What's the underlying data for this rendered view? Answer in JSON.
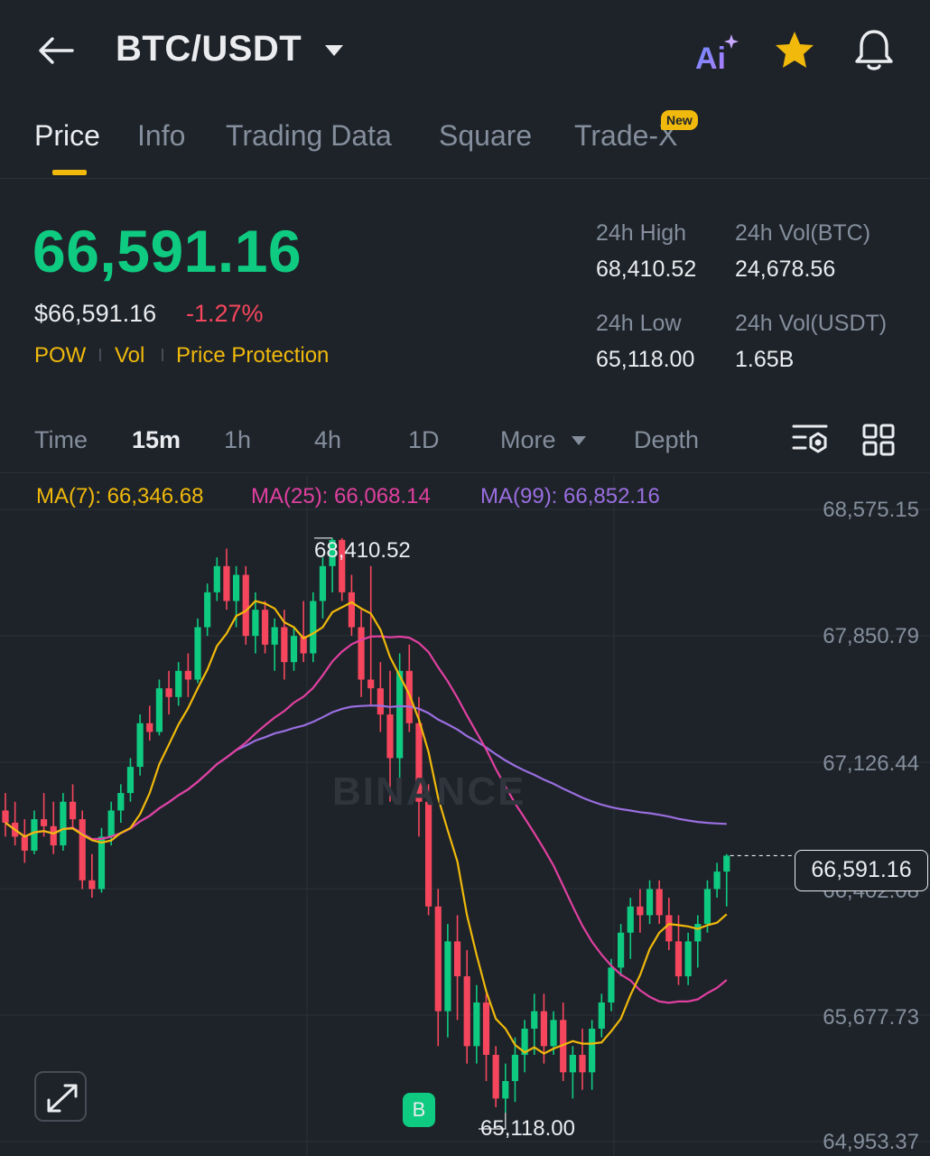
{
  "header": {
    "pair": "BTC/USDT",
    "icons": {
      "back": "back-arrow-icon",
      "caret": "chevron-down-icon",
      "ai": "ai-icon",
      "favorite": "star-icon",
      "alerts": "bell-icon"
    },
    "ai_text": "Ai",
    "favorite_color": "#f0b90b"
  },
  "tabs": [
    {
      "label": "Price",
      "active": true
    },
    {
      "label": "Info"
    },
    {
      "label": "Trading Data"
    },
    {
      "label": "Square"
    },
    {
      "label": "Trade-X",
      "badge": "New"
    }
  ],
  "price": {
    "last": "66,591.16",
    "usd": "$66,591.16",
    "change": "-1.27%",
    "tags": [
      "POW",
      "Vol",
      "Price Protection"
    ]
  },
  "stats": {
    "high_label": "24h High",
    "high_value": "68,410.52",
    "low_label": "24h Low",
    "low_value": "65,118.00",
    "vol_btc_label": "24h Vol(BTC)",
    "vol_btc_value": "24,678.56",
    "vol_usdt_label": "24h Vol(USDT)",
    "vol_usdt_value": "1.65B"
  },
  "intervals": [
    {
      "label": "Time"
    },
    {
      "label": "15m",
      "active": true
    },
    {
      "label": "1h"
    },
    {
      "label": "4h"
    },
    {
      "label": "1D"
    },
    {
      "label": "More"
    },
    {
      "label": "Depth"
    }
  ],
  "indicators": {
    "ma7": "MA(7): 66,346.68",
    "ma25": "MA(25): 66,068.14",
    "ma99": "MA(99): 66,852.16"
  },
  "colors": {
    "up": "#0ecb81",
    "down": "#f6465d",
    "accent": "#f0b90b",
    "ma7": "#f0b90b",
    "ma25": "#e040a0",
    "ma99": "#9a6ee0",
    "background": "#1e2329"
  },
  "chart": {
    "price_axis": [
      "68,575.15",
      "67,850.79",
      "67,126.44",
      "66,402.08",
      "65,677.73",
      "64,953.37"
    ],
    "current_price": "66,591.16",
    "peak_label": "68,410.52",
    "trough_label": "65,118.00",
    "buy_marker": "B",
    "watermark": "BINANCE"
  },
  "chart_data": {
    "type": "candlestick",
    "ylim": [
      64953.37,
      68575.15
    ],
    "y_ticks": [
      68575.15,
      67850.79,
      67126.44,
      66402.08,
      65677.73,
      64953.37
    ],
    "grid": true,
    "candles_ohlc": [
      [
        66850,
        66950,
        66700,
        66780
      ],
      [
        66780,
        66900,
        66650,
        66700
      ],
      [
        66700,
        66800,
        66550,
        66620
      ],
      [
        66620,
        66850,
        66600,
        66800
      ],
      [
        66800,
        66950,
        66700,
        66760
      ],
      [
        66760,
        66900,
        66600,
        66650
      ],
      [
        66650,
        66950,
        66620,
        66900
      ],
      [
        66900,
        67000,
        66750,
        66800
      ],
      [
        66800,
        66850,
        66400,
        66450
      ],
      [
        66450,
        66600,
        66350,
        66400
      ],
      [
        66400,
        66750,
        66380,
        66700
      ],
      [
        66700,
        66900,
        66650,
        66850
      ],
      [
        66850,
        67000,
        66780,
        66950
      ],
      [
        66950,
        67150,
        66900,
        67100
      ],
      [
        67100,
        67400,
        67050,
        67350
      ],
      [
        67350,
        67450,
        67250,
        67300
      ],
      [
        67300,
        67600,
        67280,
        67550
      ],
      [
        67550,
        67650,
        67400,
        67500
      ],
      [
        67500,
        67700,
        67450,
        67650
      ],
      [
        67650,
        67750,
        67500,
        67600
      ],
      [
        67600,
        67950,
        67580,
        67900
      ],
      [
        67900,
        68150,
        67850,
        68100
      ],
      [
        68100,
        68300,
        68050,
        68250
      ],
      [
        68250,
        68350,
        68000,
        68050
      ],
      [
        68050,
        68250,
        67900,
        68200
      ],
      [
        68200,
        68250,
        67800,
        67850
      ],
      [
        67850,
        68100,
        67750,
        68000
      ],
      [
        68000,
        68050,
        67750,
        67800
      ],
      [
        67800,
        67950,
        67650,
        67900
      ],
      [
        67900,
        68000,
        67600,
        67700
      ],
      [
        67700,
        67900,
        67650,
        67850
      ],
      [
        67850,
        68050,
        67700,
        67750
      ],
      [
        67750,
        68100,
        67700,
        68050
      ],
      [
        68050,
        68300,
        67950,
        68250
      ],
      [
        68250,
        68410.52,
        68100,
        68400
      ],
      [
        68400,
        68410,
        68050,
        68100
      ],
      [
        68100,
        68200,
        67850,
        67900
      ],
      [
        67900,
        68000,
        67500,
        67600
      ],
      [
        67600,
        68250,
        67450,
        67550
      ],
      [
        67550,
        67700,
        67300,
        67400
      ],
      [
        67400,
        67650,
        66900,
        67150
      ],
      [
        67150,
        67750,
        66950,
        67650
      ],
      [
        67650,
        67800,
        67300,
        67350
      ],
      [
        67350,
        67500,
        66700,
        66900
      ],
      [
        66900,
        67000,
        66250,
        66300
      ],
      [
        66300,
        66400,
        65500,
        65700
      ],
      [
        65700,
        66200,
        65550,
        66100
      ],
      [
        66100,
        66250,
        65650,
        65900
      ],
      [
        65900,
        66050,
        65400,
        65500
      ],
      [
        65500,
        65850,
        65400,
        65750
      ],
      [
        65750,
        65800,
        65300,
        65450
      ],
      [
        65450,
        65500,
        65150,
        65200
      ],
      [
        65200,
        65400,
        65118,
        65300
      ],
      [
        65300,
        65550,
        65180,
        65450
      ],
      [
        65450,
        65650,
        65350,
        65600
      ],
      [
        65600,
        65800,
        65450,
        65700
      ],
      [
        65700,
        65800,
        65400,
        65500
      ],
      [
        65500,
        65700,
        65450,
        65650
      ],
      [
        65650,
        65750,
        65300,
        65350
      ],
      [
        65350,
        65500,
        65200,
        65450
      ],
      [
        65450,
        65600,
        65250,
        65350
      ],
      [
        65350,
        65650,
        65250,
        65600
      ],
      [
        65600,
        65800,
        65550,
        65750
      ],
      [
        65750,
        66000,
        65700,
        65950
      ],
      [
        65950,
        66200,
        65900,
        66150
      ],
      [
        66150,
        66350,
        66000,
        66300
      ],
      [
        66300,
        66400,
        66150,
        66250
      ],
      [
        66250,
        66450,
        66200,
        66400
      ],
      [
        66400,
        66450,
        66200,
        66250
      ],
      [
        66250,
        66350,
        66050,
        66100
      ],
      [
        66100,
        66250,
        65850,
        65900
      ],
      [
        65900,
        66150,
        65850,
        66100
      ],
      [
        66100,
        66250,
        65950,
        66200
      ],
      [
        66200,
        66450,
        66150,
        66400
      ],
      [
        66400,
        66550,
        66350,
        66500
      ],
      [
        66500,
        66600,
        66300,
        66591.16
      ]
    ]
  }
}
